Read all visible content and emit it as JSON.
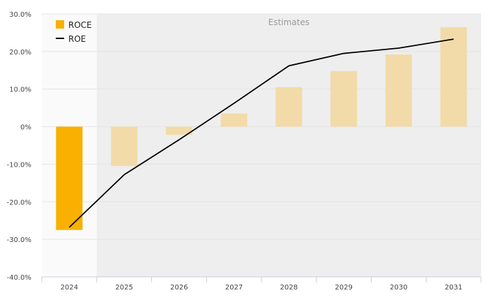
{
  "chart_data": {
    "type": "bar",
    "categories": [
      "2024",
      "2025",
      "2026",
      "2027",
      "2028",
      "2029",
      "2030",
      "2031"
    ],
    "series": [
      {
        "name": "ROCE",
        "kind": "bar",
        "values": [
          -27.5,
          -10.5,
          -2.2,
          3.5,
          10.5,
          14.8,
          19.2,
          26.5
        ],
        "estimate_from_index": 1,
        "color": "#f9b000",
        "estimate_color": "#f2dba8"
      },
      {
        "name": "ROE",
        "kind": "line",
        "values": [
          -26.8,
          -12.8,
          -3.5,
          6.2,
          16.2,
          19.5,
          20.9,
          23.3
        ],
        "color": "#000000"
      }
    ],
    "ylim": [
      -40,
      30
    ],
    "yticks": [
      30,
      20,
      10,
      0,
      -10,
      -20,
      -30,
      -40
    ],
    "ytick_labels": [
      "30.0%",
      "20.0%",
      "10.0%",
      "0%",
      "-10.0%",
      "-20.0%",
      "-30.0%",
      "-40.0%"
    ],
    "estimates_label": "Estimates",
    "grid": true,
    "legend_position": "top-left"
  }
}
